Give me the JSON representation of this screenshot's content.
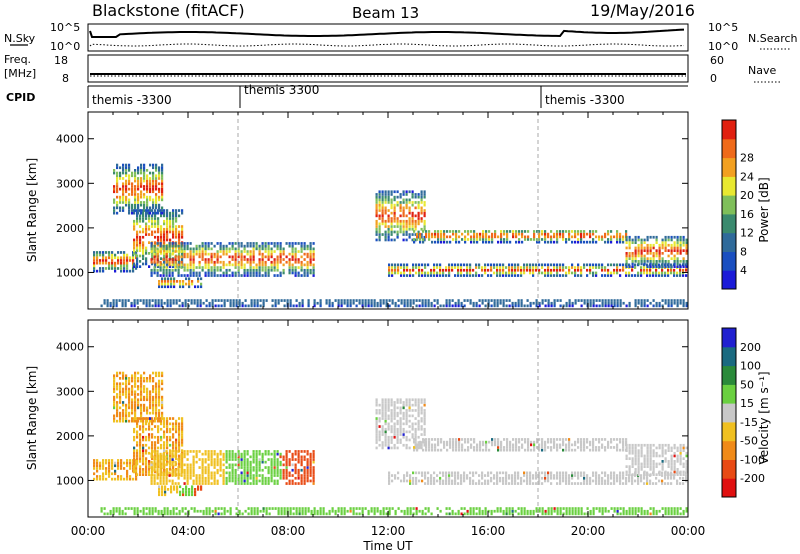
{
  "header": {
    "title": "Blackstone (fitACF)",
    "beam": "Beam 13",
    "date": "19/May/2016"
  },
  "summary_panels": {
    "nsky": {
      "label": "N.Sky",
      "left_ticks": [
        "10^5",
        "10^0"
      ],
      "right_label": "N.Search",
      "right_ticks": [
        "10^5",
        "10^0"
      ]
    },
    "freq": {
      "label_line1": "Freq.",
      "label_line2": "[MHz]",
      "left_ticks": [
        "18",
        "8"
      ],
      "right_label": "Nave",
      "right_ticks": [
        "60",
        "0"
      ]
    },
    "cpid": {
      "label": "CPID",
      "entries": [
        {
          "text": "themis -3300",
          "start_hour": 0
        },
        {
          "text": "themis 3300",
          "start_hour": 6
        },
        {
          "text": "themis -3300",
          "start_hour": 18
        }
      ]
    }
  },
  "chart_data": [
    {
      "type": "heatmap",
      "name": "power",
      "ylabel": "Slant Range [km]",
      "ylim": [
        180,
        4600
      ],
      "yticks": [
        1000,
        2000,
        3000,
        4000
      ],
      "xlim": [
        0,
        24
      ],
      "colorbar": {
        "label": "Power [dB]",
        "ticks": [
          "4",
          "8",
          "12",
          "16",
          "20",
          "24",
          "28"
        ],
        "colors": [
          "#1b1bd8",
          "#1a4fc0",
          "#2f6a9a",
          "#3a8a6e",
          "#7fbf5a",
          "#e8e830",
          "#f2a020",
          "#ef6a1a",
          "#e02010"
        ]
      },
      "echo_bands": [
        {
          "t0": 0.2,
          "t1": 2.0,
          "r0": 1000,
          "r1": 1450
        },
        {
          "t0": 1.8,
          "t1": 3.8,
          "r0": 1100,
          "r1": 2400
        },
        {
          "t0": 1.0,
          "t1": 3.0,
          "r0": 2300,
          "r1": 3400
        },
        {
          "t0": 2.5,
          "t1": 9.0,
          "r0": 900,
          "r1": 1650
        },
        {
          "t0": 2.8,
          "t1": 4.5,
          "r0": 650,
          "r1": 850
        },
        {
          "t0": 11.5,
          "t1": 13.5,
          "r0": 1700,
          "r1": 2800
        },
        {
          "t0": 13.0,
          "t1": 18.0,
          "r0": 1650,
          "r1": 1950
        },
        {
          "t0": 12.0,
          "t1": 24.0,
          "r0": 900,
          "r1": 1150
        },
        {
          "t0": 18.0,
          "t1": 21.5,
          "r0": 1650,
          "r1": 1950
        },
        {
          "t0": 21.5,
          "t1": 24.0,
          "r0": 1100,
          "r1": 1800
        },
        {
          "t0": 0.5,
          "t1": 24.0,
          "r0": 220,
          "r1": 380
        }
      ]
    },
    {
      "type": "heatmap",
      "name": "velocity",
      "ylabel": "Slant Range [km]",
      "xlabel": "Time UT",
      "ylim": [
        180,
        4600
      ],
      "yticks": [
        1000,
        2000,
        3000,
        4000
      ],
      "xlim": [
        0,
        24
      ],
      "xticks": [
        "00:00",
        "04:00",
        "08:00",
        "12:00",
        "16:00",
        "20:00",
        "00:00"
      ],
      "colorbar": {
        "label": "Velocity [m s⁻¹]",
        "ticks": [
          "200",
          "100",
          "50",
          "15",
          "-15",
          "-50",
          "-100",
          "-200"
        ],
        "colors": [
          "#2020d0",
          "#1a6a80",
          "#2a8a3a",
          "#6ad040",
          "#c8c8c8",
          "#f0c020",
          "#f08a18",
          "#e84a14",
          "#e01010"
        ]
      },
      "echo_bands": [
        {
          "t0": 0.2,
          "t1": 2.0,
          "r0": 1000,
          "r1": 1450
        },
        {
          "t0": 1.8,
          "t1": 3.8,
          "r0": 1100,
          "r1": 2400
        },
        {
          "t0": 1.0,
          "t1": 3.0,
          "r0": 2300,
          "r1": 3400
        },
        {
          "t0": 2.5,
          "t1": 9.0,
          "r0": 900,
          "r1": 1650
        },
        {
          "t0": 2.8,
          "t1": 4.5,
          "r0": 650,
          "r1": 850
        },
        {
          "t0": 11.5,
          "t1": 13.5,
          "r0": 1700,
          "r1": 2800
        },
        {
          "t0": 13.0,
          "t1": 18.0,
          "r0": 1650,
          "r1": 1950
        },
        {
          "t0": 12.0,
          "t1": 24.0,
          "r0": 900,
          "r1": 1150
        },
        {
          "t0": 18.0,
          "t1": 21.5,
          "r0": 1650,
          "r1": 1950
        },
        {
          "t0": 21.5,
          "t1": 24.0,
          "r0": 1100,
          "r1": 1800
        },
        {
          "t0": 0.5,
          "t1": 24.0,
          "r0": 220,
          "r1": 380
        }
      ]
    }
  ]
}
